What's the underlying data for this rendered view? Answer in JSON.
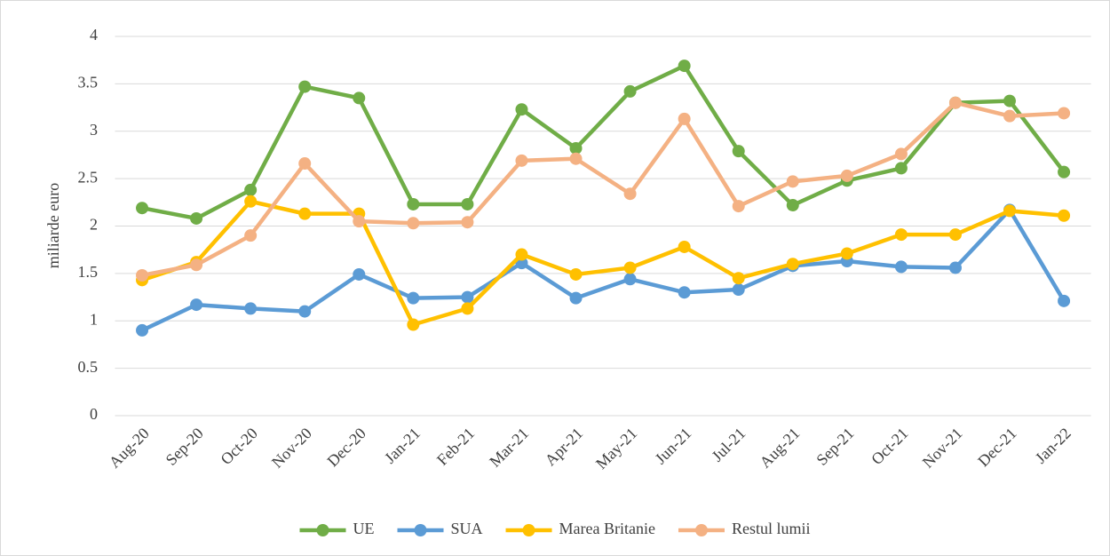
{
  "chart_data": {
    "type": "line",
    "ylabel": "miliarde euro",
    "categories": [
      "Aug-20",
      "Sep-20",
      "Oct-20",
      "Nov-20",
      "Dec-20",
      "Jan-21",
      "Feb-21",
      "Mar-21",
      "Apr-21",
      "May-21",
      "Jun-21",
      "Jul-21",
      "Aug-21",
      "Sep-21",
      "Oct-21",
      "Nov-21",
      "Dec-21",
      "Jan-22"
    ],
    "series": [
      {
        "name": "UE",
        "color": "#70ad47",
        "values": [
          2.19,
          2.08,
          2.38,
          3.47,
          3.35,
          2.23,
          2.23,
          3.23,
          2.82,
          3.42,
          3.69,
          2.79,
          2.22,
          2.48,
          2.61,
          3.3,
          3.32,
          2.57
        ]
      },
      {
        "name": "SUA",
        "color": "#5b9bd5",
        "values": [
          0.9,
          1.17,
          1.13,
          1.1,
          1.49,
          1.24,
          1.25,
          1.61,
          1.24,
          1.44,
          1.3,
          1.33,
          1.58,
          1.63,
          1.57,
          1.56,
          2.17,
          1.21
        ]
      },
      {
        "name": "Marea Britanie",
        "color": "#ffc000",
        "values": [
          1.43,
          1.62,
          2.26,
          2.13,
          2.13,
          0.96,
          1.13,
          1.7,
          1.49,
          1.56,
          1.78,
          1.45,
          1.6,
          1.71,
          1.91,
          1.91,
          2.16,
          2.11
        ]
      },
      {
        "name": "Restul lumii",
        "color": "#f4b183",
        "values": [
          1.48,
          1.59,
          1.9,
          2.66,
          2.05,
          2.03,
          2.04,
          2.69,
          2.71,
          2.34,
          3.13,
          2.21,
          2.47,
          2.53,
          2.76,
          3.3,
          3.16,
          3.19
        ]
      }
    ],
    "ylim": [
      0,
      4
    ],
    "yticks": [
      0,
      0.5,
      1,
      1.5,
      2,
      2.5,
      3,
      3.5,
      4
    ],
    "grid": true,
    "legend": "bottom"
  }
}
